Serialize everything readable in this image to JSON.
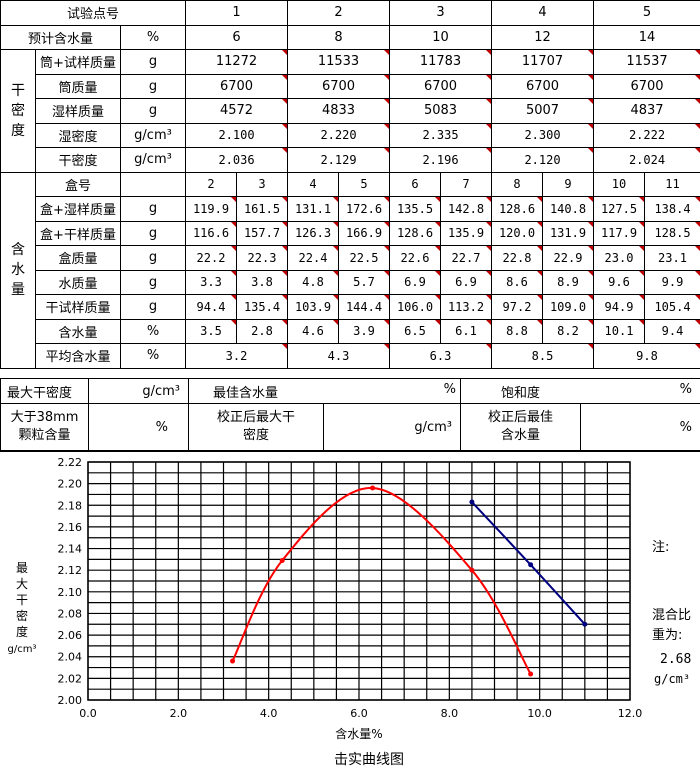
{
  "header": {
    "point_label": "试验点号",
    "points": [
      "1",
      "2",
      "3",
      "4",
      "5"
    ],
    "est_water_label": "预计含水量",
    "est_water_unit": "%",
    "est_water": [
      "6",
      "8",
      "10",
      "12",
      "14"
    ]
  },
  "dry_density": {
    "section_label": "干密度",
    "rows": [
      {
        "label": "筒+试样质量",
        "unit": "g",
        "values": [
          "11272",
          "11533",
          "11783",
          "11707",
          "11537"
        ]
      },
      {
        "label": "筒质量",
        "unit": "g",
        "values": [
          "6700",
          "6700",
          "6700",
          "6700",
          "6700"
        ]
      },
      {
        "label": "湿样质量",
        "unit": "g",
        "values": [
          "4572",
          "4833",
          "5083",
          "5007",
          "4837"
        ]
      },
      {
        "label": "湿密度",
        "unit": "g/cm³",
        "values": [
          "2.100",
          "2.220",
          "2.335",
          "2.300",
          "2.222"
        ]
      },
      {
        "label": "干密度",
        "unit": "g/cm³",
        "values": [
          "2.036",
          "2.129",
          "2.196",
          "2.120",
          "2.024"
        ]
      }
    ]
  },
  "water": {
    "section_label": "含水量",
    "box_label": "盒号",
    "boxes": [
      "2",
      "3",
      "4",
      "5",
      "6",
      "7",
      "8",
      "9",
      "10",
      "11"
    ],
    "rows": [
      {
        "label": "盒+湿样质量",
        "unit": "g",
        "values": [
          "119.9",
          "161.5",
          "131.1",
          "172.6",
          "135.5",
          "142.8",
          "128.6",
          "140.8",
          "127.5",
          "138.4"
        ]
      },
      {
        "label": "盒+干样质量",
        "unit": "g",
        "values": [
          "116.6",
          "157.7",
          "126.3",
          "166.9",
          "128.6",
          "135.9",
          "120.0",
          "131.9",
          "117.9",
          "128.5"
        ]
      },
      {
        "label": "盒质量",
        "unit": "g",
        "values": [
          "22.2",
          "22.3",
          "22.4",
          "22.5",
          "22.6",
          "22.7",
          "22.8",
          "22.9",
          "23.0",
          "23.1"
        ]
      },
      {
        "label": "水质量",
        "unit": "g",
        "values": [
          "3.3",
          "3.8",
          "4.8",
          "5.7",
          "6.9",
          "6.9",
          "8.6",
          "8.9",
          "9.6",
          "9.9"
        ]
      },
      {
        "label": "干试样质量",
        "unit": "g",
        "values": [
          "94.4",
          "135.4",
          "103.9",
          "144.4",
          "106.0",
          "113.2",
          "97.2",
          "109.0",
          "94.9",
          "105.4"
        ]
      },
      {
        "label": "含水量",
        "unit": "%",
        "values": [
          "3.5",
          "2.8",
          "4.6",
          "3.9",
          "6.5",
          "6.1",
          "8.8",
          "8.2",
          "10.1",
          "9.4"
        ]
      }
    ],
    "avg_label": "平均含水量",
    "avg_unit": "%",
    "avg_values": [
      "3.2",
      "4.3",
      "6.3",
      "8.5",
      "9.8"
    ]
  },
  "summary": {
    "max_dd_label": "最大干密度",
    "max_dd_unit": "g/cm³",
    "opt_w_label": "最佳含水量",
    "opt_w_unit": "%",
    "sat_label": "饱和度",
    "sat_unit": "%",
    "gt38_label_1": "大于38mm",
    "gt38_label_2": "颗粒含量",
    "gt38_unit": "%",
    "corr_dd_label_1": "校正后最大干",
    "corr_dd_label_2": "密度",
    "corr_dd_unit": "g/cm³",
    "corr_w_label_1": "校正后最佳",
    "corr_w_label_2": "含水量",
    "corr_w_unit": "%"
  },
  "side": {
    "note_label": "注:",
    "mix_label_1": "混合比",
    "mix_label_2": "重为:",
    "mix_value": "2.68",
    "mix_unit": "g/cm³"
  },
  "chart_data": {
    "type": "line",
    "title": "击实曲线图",
    "xlabel": "含水量%",
    "ylabel_chars": [
      "最",
      "大",
      "干",
      "密",
      "度"
    ],
    "ylabel_unit": "g/cm³",
    "xlim": [
      0,
      12
    ],
    "ylim": [
      2.0,
      2.22
    ],
    "x_ticks": [
      "0.0",
      "2.0",
      "4.0",
      "6.0",
      "8.0",
      "10.0",
      "12.0"
    ],
    "y_ticks": [
      "2.00",
      "2.02",
      "2.04",
      "2.06",
      "2.08",
      "2.10",
      "2.12",
      "2.14",
      "2.16",
      "2.18",
      "2.20",
      "2.22"
    ],
    "grid": true,
    "series": [
      {
        "color": "#ff0000",
        "points": [
          [
            3.2,
            2.036
          ],
          [
            4.3,
            2.129
          ],
          [
            6.3,
            2.196
          ],
          [
            8.5,
            2.12
          ],
          [
            9.8,
            2.024
          ]
        ]
      },
      {
        "color": "#000080",
        "points": [
          [
            8.5,
            2.183
          ],
          [
            9.8,
            2.125
          ],
          [
            11.0,
            2.07
          ]
        ]
      }
    ]
  }
}
